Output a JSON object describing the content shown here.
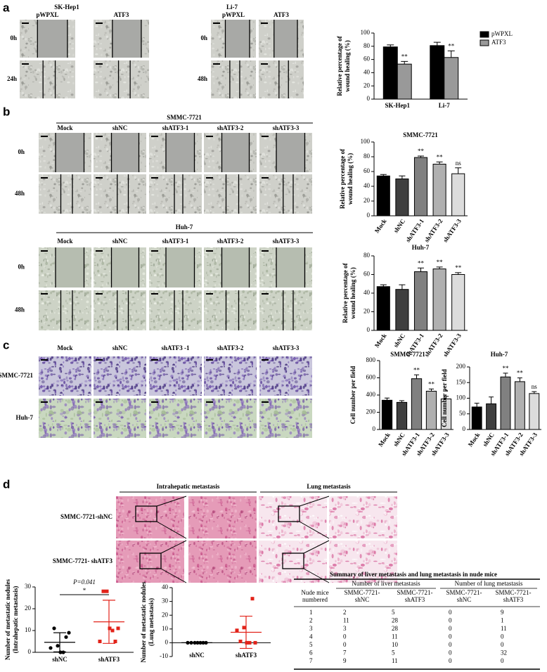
{
  "panel_labels": [
    "a",
    "b",
    "c",
    "d"
  ],
  "micrographs": [
    {
      "title": "SK-Hep1",
      "columns": [
        "pWPXL",
        "ATF3"
      ],
      "rows": [
        "0h",
        "24h"
      ]
    },
    {
      "title": "Li-7",
      "columns": [
        "pWPXL",
        "ATF3"
      ],
      "rows": [
        "0h",
        "48h"
      ]
    },
    {
      "title": "SMMC-7721",
      "columns": [
        "Mock",
        "shNC",
        "shATF3-1",
        "shATF3-2",
        "shATF3-3"
      ],
      "rows": [
        "0h",
        "48h"
      ]
    },
    {
      "title": "Huh-7",
      "columns": [
        "Mock",
        "shNC",
        "shATF3-1",
        "shATF3-2",
        "shATF3-3"
      ],
      "rows": [
        "0h",
        "48h"
      ]
    },
    {
      "columns": [
        "Mock",
        "shNC",
        "shATF3 -1",
        "shATF3-2",
        "shATF3-3"
      ],
      "rows": [
        "SMMC-7721",
        "Huh-7"
      ]
    },
    {
      "columns": [
        "Intrahepatic metastasis",
        "Lung metastasis"
      ],
      "rows": [
        "SMMC-7721-shNC",
        "SMMC-7721- shATF3"
      ]
    }
  ],
  "chart_data": [
    {
      "type": "bar",
      "ylabel": [
        "Relative percentage of",
        "wound healing (%)"
      ],
      "categories": [
        "SK-Hep1",
        "Li-7"
      ],
      "series": [
        {
          "name": "pWPXL",
          "color": "#000000",
          "values": [
            79,
            81
          ],
          "errors": [
            3,
            5
          ]
        },
        {
          "name": "ATF3",
          "color": "#999999",
          "values": [
            53,
            63
          ],
          "errors": [
            4,
            10
          ],
          "significance": [
            "**",
            "**"
          ]
        }
      ],
      "ylim": [
        0,
        100
      ],
      "yticks": [
        0,
        20,
        40,
        60,
        80,
        100
      ],
      "legend": "upper right"
    },
    {
      "type": "bar",
      "title": "SMMC-7721",
      "ylabel": [
        "Relative percentage of",
        "wound healing (%)"
      ],
      "categories": [
        "Mock",
        "shNC",
        "shATF3-1",
        "shATF3-2",
        "shATF3-3"
      ],
      "values": [
        54,
        50,
        79,
        70,
        57
      ],
      "errors": [
        2,
        4,
        2,
        3,
        8
      ],
      "colors": [
        "#000000",
        "#3f3f3f",
        "#808080",
        "#b0b0b0",
        "#dcdcdc"
      ],
      "significance": [
        null,
        null,
        "**",
        "**",
        "ns"
      ],
      "ylim": [
        0,
        100
      ],
      "yticks": [
        0,
        20,
        40,
        60,
        80,
        100
      ]
    },
    {
      "type": "bar",
      "title": "Huh-7",
      "ylabel": [
        "Relative percentage of",
        "wound healing (%)"
      ],
      "categories": [
        "Mock",
        "shNC",
        "shATF3-1",
        "shATF3-2",
        "shATF3-3"
      ],
      "values": [
        47,
        44,
        63,
        66,
        60
      ],
      "errors": [
        2,
        5,
        4,
        2,
        2
      ],
      "colors": [
        "#000000",
        "#3f3f3f",
        "#808080",
        "#b0b0b0",
        "#dcdcdc"
      ],
      "significance": [
        null,
        null,
        "**",
        "**",
        "**"
      ],
      "ylim": [
        0,
        80
      ],
      "yticks": [
        0,
        20,
        40,
        60,
        80
      ]
    },
    {
      "type": "bar",
      "title": "SMMC-7721",
      "ylabel": [
        "Cell number per field"
      ],
      "categories": [
        "Mock",
        "shNC",
        "shATF3-1",
        "shATF3-2",
        "shATF3-3"
      ],
      "values": [
        340,
        315,
        590,
        445,
        355
      ],
      "errors": [
        25,
        20,
        45,
        25,
        30
      ],
      "colors": [
        "#000000",
        "#3f3f3f",
        "#808080",
        "#b0b0b0",
        "#dcdcdc"
      ],
      "significance": [
        null,
        null,
        "**",
        "**",
        "*"
      ],
      "ylim": [
        0,
        800
      ],
      "yticks": [
        0,
        200,
        400,
        600,
        800
      ]
    },
    {
      "type": "bar",
      "title": "Huh-7",
      "ylabel": [
        "Cell number per field"
      ],
      "categories": [
        "Mock",
        "shNC",
        "shATF3-1",
        "shATF3-2",
        "shATF3-3"
      ],
      "values": [
        72,
        82,
        168,
        153,
        115
      ],
      "errors": [
        12,
        22,
        12,
        12,
        6
      ],
      "colors": [
        "#000000",
        "#3f3f3f",
        "#808080",
        "#b0b0b0",
        "#dcdcdc"
      ],
      "significance": [
        null,
        null,
        "**",
        "**",
        "ns"
      ],
      "ylim": [
        0,
        200
      ],
      "yticks": [
        0,
        50,
        100,
        150,
        200
      ]
    },
    {
      "type": "strip",
      "ylabel": [
        "Number of metastatic nodules",
        "(Intrahepatic metastasis)"
      ],
      "categories": [
        "shNC",
        "shATF3"
      ],
      "series": [
        {
          "name": "shNC",
          "color": "#000000",
          "values": [
            2,
            11,
            3,
            0,
            0,
            7,
            9
          ],
          "mean": 4.6,
          "sd": 4.4
        },
        {
          "name": "shATF3",
          "color": "#e2231a",
          "values": [
            5,
            28,
            28,
            11,
            10,
            5,
            11
          ],
          "mean": 14,
          "sd": 9.9
        }
      ],
      "annotation": "P=0.041",
      "significance": "*",
      "ylim": [
        0,
        30
      ],
      "yticks": [
        0,
        10,
        20,
        30
      ]
    },
    {
      "type": "strip",
      "ylabel": [
        "Number of metastatic nodules",
        "(Lung metastasis)"
      ],
      "categories": [
        "shNC",
        "shATF3"
      ],
      "series": [
        {
          "name": "shNC",
          "color": "#000000",
          "values": [
            0,
            0,
            0,
            0,
            0,
            0,
            0
          ],
          "mean": 0,
          "sd": 0
        },
        {
          "name": "shATF3",
          "color": "#e2231a",
          "values": [
            9,
            1,
            11,
            0,
            0,
            32,
            0
          ],
          "mean": 7.6,
          "sd": 11.7
        }
      ],
      "ylim": [
        -10,
        40
      ],
      "yticks": [
        -10,
        0,
        10,
        20,
        30,
        40
      ]
    }
  ],
  "table": {
    "title": "Summary of liver metastasis and lung metastasis in nude mice",
    "corner": [
      "Nude mice",
      "numbered"
    ],
    "groups": [
      "Number of liver metastasis",
      "Number of lung metastasis"
    ],
    "subheaders": [
      [
        "SMMC-7721-",
        "shNC"
      ],
      [
        "SMMC-7721-",
        "shATF3"
      ],
      [
        "SMMC-7721-",
        "shNC"
      ],
      [
        "SMMC-7721-",
        "shATF3"
      ]
    ],
    "rows": [
      [
        1,
        2,
        5,
        0,
        9
      ],
      [
        2,
        11,
        28,
        0,
        1
      ],
      [
        3,
        3,
        28,
        0,
        11
      ],
      [
        4,
        0,
        11,
        0,
        0
      ],
      [
        5,
        0,
        10,
        0,
        0
      ],
      [
        6,
        7,
        5,
        0,
        32
      ],
      [
        7,
        9,
        11,
        0,
        0
      ]
    ]
  }
}
